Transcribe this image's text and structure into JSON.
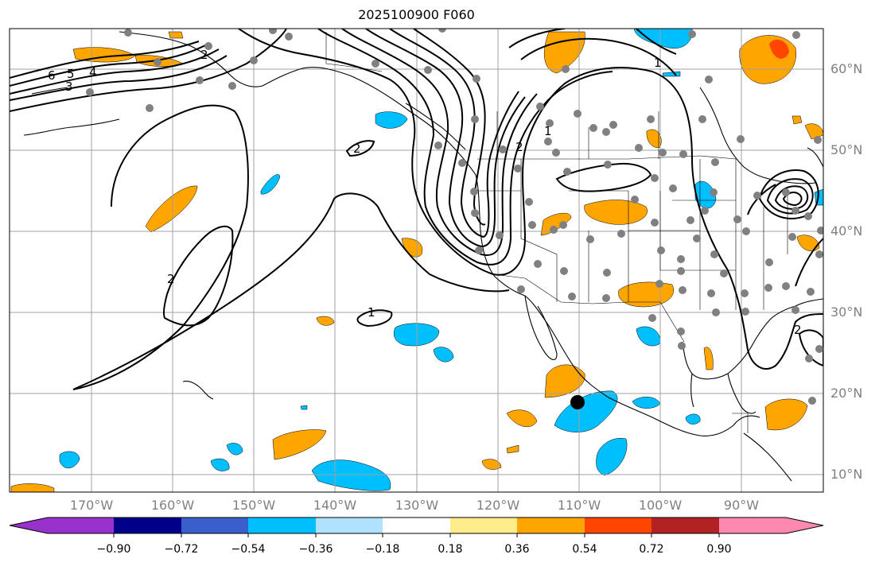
{
  "title": "2025100900 F060",
  "map": {
    "latitude_labels": [
      "60°N",
      "50°N",
      "40°N",
      "30°N",
      "20°N",
      "10°N"
    ],
    "longitude_labels": [
      "170°W",
      "160°W",
      "150°W",
      "140°W",
      "130°W",
      "120°W",
      "110°W",
      "100°W",
      "90°W"
    ],
    "contour_labels": [
      "6",
      "5",
      "4",
      "3",
      "2",
      "2",
      "2",
      "1",
      "1",
      "1",
      "2",
      "2"
    ],
    "colors": {
      "contour": "#000000",
      "coast": "#000000",
      "gridline": "#a0a0a0",
      "station_dot": "#808080",
      "marker": "#000000",
      "positive_low": "#ffa500",
      "positive_high": "#ff4500",
      "negative_low": "#00bfff"
    }
  },
  "colorbar": {
    "tick_labels": [
      "−0.90",
      "−0.72",
      "−0.54",
      "−0.36",
      "−0.18",
      "0.18",
      "0.36",
      "0.54",
      "0.72",
      "0.90"
    ],
    "colors": [
      "#9932cc",
      "#00008b",
      "#3a5fcd",
      "#00bfff",
      "#b0e2ff",
      "#ffffff",
      "#ffec8b",
      "#ffa500",
      "#ff4500",
      "#b22222",
      "#ff88b0"
    ]
  }
}
